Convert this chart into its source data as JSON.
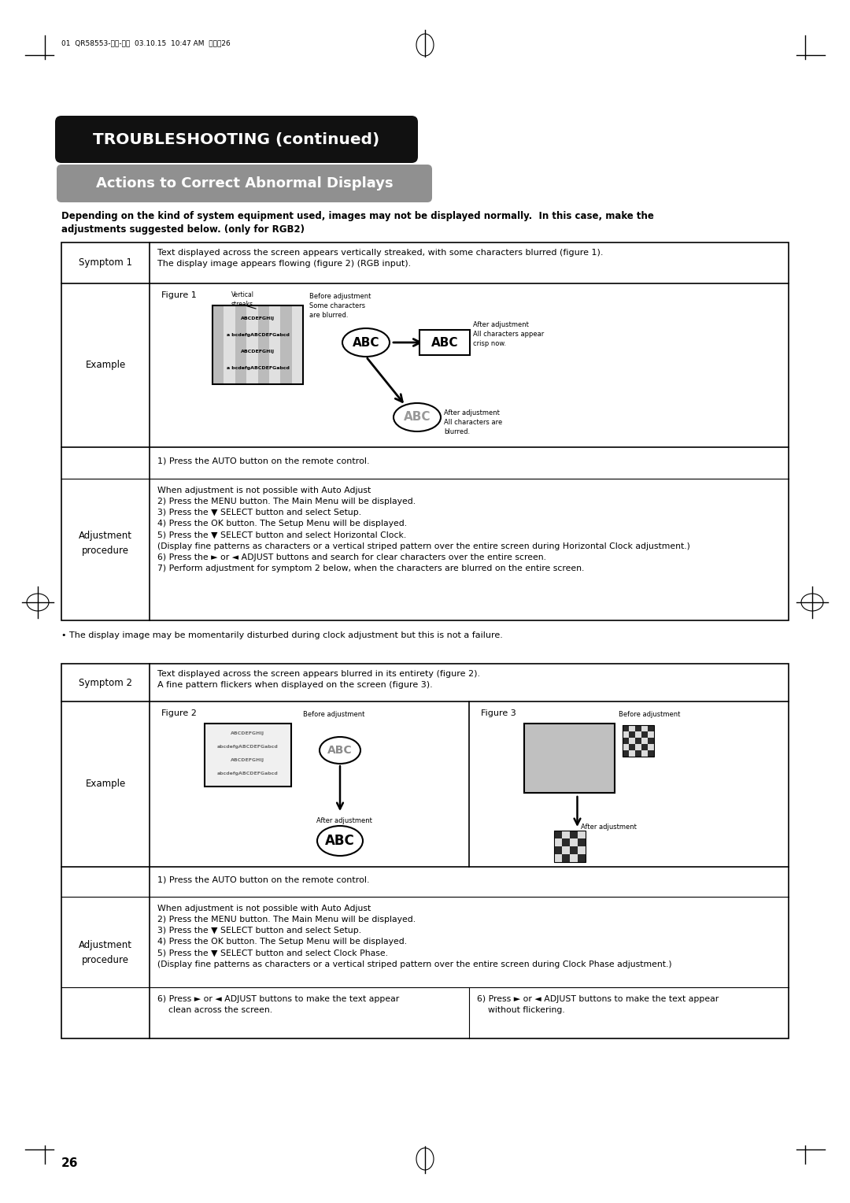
{
  "page_bg": "#ffffff",
  "header_text": "01  QR58553-英語-初校  03.10.15  10:47 AM  ページ26",
  "title_box_text": "TROUBLESHOOTING (continued)",
  "title_box_bg": "#111111",
  "title_box_text_color": "#ffffff",
  "subtitle_box_text": "Actions to Correct Abnormal Displays",
  "subtitle_box_bg": "#888888",
  "subtitle_box_text_color": "#ffffff",
  "intro_text_line1": "Depending on the kind of system equipment used, images may not be displayed normally.  In this case, make the",
  "intro_text_line2": "adjustments suggested below. (only for RGB2)",
  "symptom1_label": "Symptom 1",
  "symptom1_text": "Text displayed across the screen appears vertically streaked, with some characters blurred (figure 1).\nThe display image appears flowing (figure 2) (RGB input).",
  "figure1_label": "Figure 1",
  "example_label": "Example",
  "adjustment_label": "Adjustment\nprocedure",
  "adj1_step1": "1) Press the AUTO button on the remote control.",
  "adj1_steps": "When adjustment is not possible with Auto Adjust\n2) Press the MENU button. The Main Menu will be displayed.\n3) Press the ▼ SELECT button and select Setup.\n4) Press the OK button. The Setup Menu will be displayed.\n5) Press the ▼ SELECT button and select Horizontal Clock.\n(Display fine patterns as characters or a vertical striped pattern over the entire screen during Horizontal Clock adjustment.)\n6) Press the ► or ◄ ADJUST buttons and search for clear characters over the entire screen.\n7) Perform adjustment for symptom 2 below, when the characters are blurred on the entire screen.",
  "bullet_note": "• The display image may be momentarily disturbed during clock adjustment but this is not a failure.",
  "symptom2_label": "Symptom 2",
  "symptom2_text": "Text displayed across the screen appears blurred in its entirety (figure 2).\nA fine pattern flickers when displayed on the screen (figure 3).",
  "figure2_label": "Figure 2",
  "figure3_label": "Figure 3",
  "adj2_step1": "1) Press the AUTO button on the remote control.",
  "adj2_steps": "When adjustment is not possible with Auto Adjust\n2) Press the MENU button. The Main Menu will be displayed.\n3) Press the ▼ SELECT button and select Setup.\n4) Press the OK button. The Setup Menu will be displayed.\n5) Press the ▼ SELECT button and select Clock Phase.\n(Display fine patterns as characters or a vertical striped pattern over the entire screen during Clock Phase adjustment.)",
  "adj2_step6a": "6) Press ► or ◄ ADJUST buttons to make the text appear\n    clean across the screen.",
  "adj2_step6b": "6) Press ► or ◄ ADJUST buttons to make the text appear\n    without flickering.",
  "page_number": "26"
}
